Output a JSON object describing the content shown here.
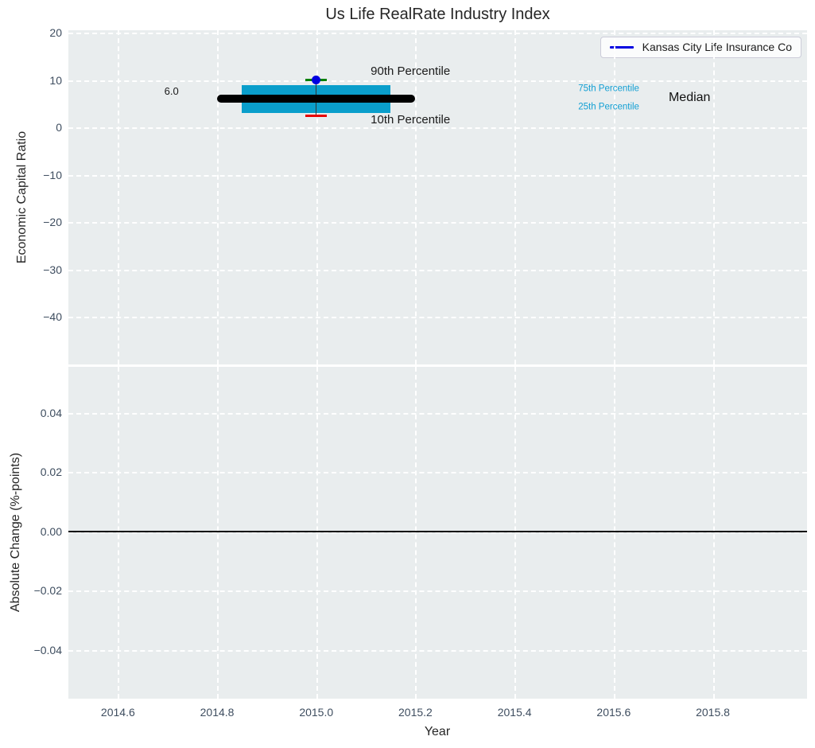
{
  "chart_data": [
    {
      "type": "boxplot",
      "title": "Us Life RealRate Industry Index",
      "ylabel": "Economic Capital Ratio",
      "xlabel": "Year",
      "xlim": [
        2014.5,
        2015.99
      ],
      "ylim": [
        -50,
        20.5
      ],
      "xticks": [
        2014.6,
        2014.8,
        2015.0,
        2015.2,
        2015.4,
        2015.6,
        2015.8
      ],
      "yticks": [
        20,
        10,
        0,
        -10,
        -20,
        -30,
        -40
      ],
      "grid": true,
      "legend": {
        "label": "Kansas City Life Insurance Co",
        "position": "upper right",
        "line_color": "#0000e0"
      },
      "series": [
        {
          "name": "industry-boxplot",
          "x": 2015.0,
          "median": 6.0,
          "q1": 3.0,
          "q3": 9.0,
          "p10": 2.4,
          "p90": 10.0,
          "box_x_span": [
            2014.85,
            2015.15
          ],
          "median_x_span": [
            2014.8,
            2015.2
          ],
          "cap_width": 0.043,
          "colors": {
            "box": "#0a9ecb",
            "median": "#000000",
            "whisker": "#333333",
            "cap90": "#008000",
            "cap10": "#e60000"
          }
        },
        {
          "name": "Kansas City Life Insurance Co",
          "points": [
            {
              "x": 2015.0,
              "y": 10.0
            }
          ],
          "color": "#0000e0",
          "marker": "circle"
        }
      ],
      "annotations": [
        {
          "id": "median-value",
          "text": "6.0",
          "x": 2014.708,
          "y": 7.6,
          "color": "#1a1a1a",
          "size": 13
        },
        {
          "id": "p90",
          "text": "90th Percentile",
          "x": 2015.19,
          "y": 11.7,
          "color": "#1a1a1a",
          "size": 15
        },
        {
          "id": "p10",
          "text": "10th Percentile",
          "x": 2015.19,
          "y": 1.5,
          "color": "#1a1a1a",
          "size": 15
        },
        {
          "id": "p75",
          "text": "75th Percentile",
          "x": 2015.59,
          "y": 8.1,
          "color": "#13a0d4",
          "size": 11.5
        },
        {
          "id": "p25",
          "text": "25th Percentile",
          "x": 2015.59,
          "y": 4.2,
          "color": "#13a0d4",
          "size": 11.5
        },
        {
          "id": "median",
          "text": "Median",
          "x": 2015.753,
          "y": 6.2,
          "color": "#111111",
          "size": 16
        }
      ]
    },
    {
      "type": "line",
      "ylabel": "Absolute Change (%-points)",
      "xlabel": "Year",
      "xlim": [
        2014.5,
        2015.99
      ],
      "ylim": [
        -0.0565,
        0.0555
      ],
      "xticks": [
        2014.6,
        2014.8,
        2015.0,
        2015.2,
        2015.4,
        2015.6,
        2015.8
      ],
      "yticks": [
        0.04,
        0.02,
        0.0,
        -0.02,
        -0.04
      ],
      "grid": true,
      "series": [
        {
          "name": "zero-line",
          "y": 0.0,
          "color": "#000000"
        }
      ]
    }
  ]
}
